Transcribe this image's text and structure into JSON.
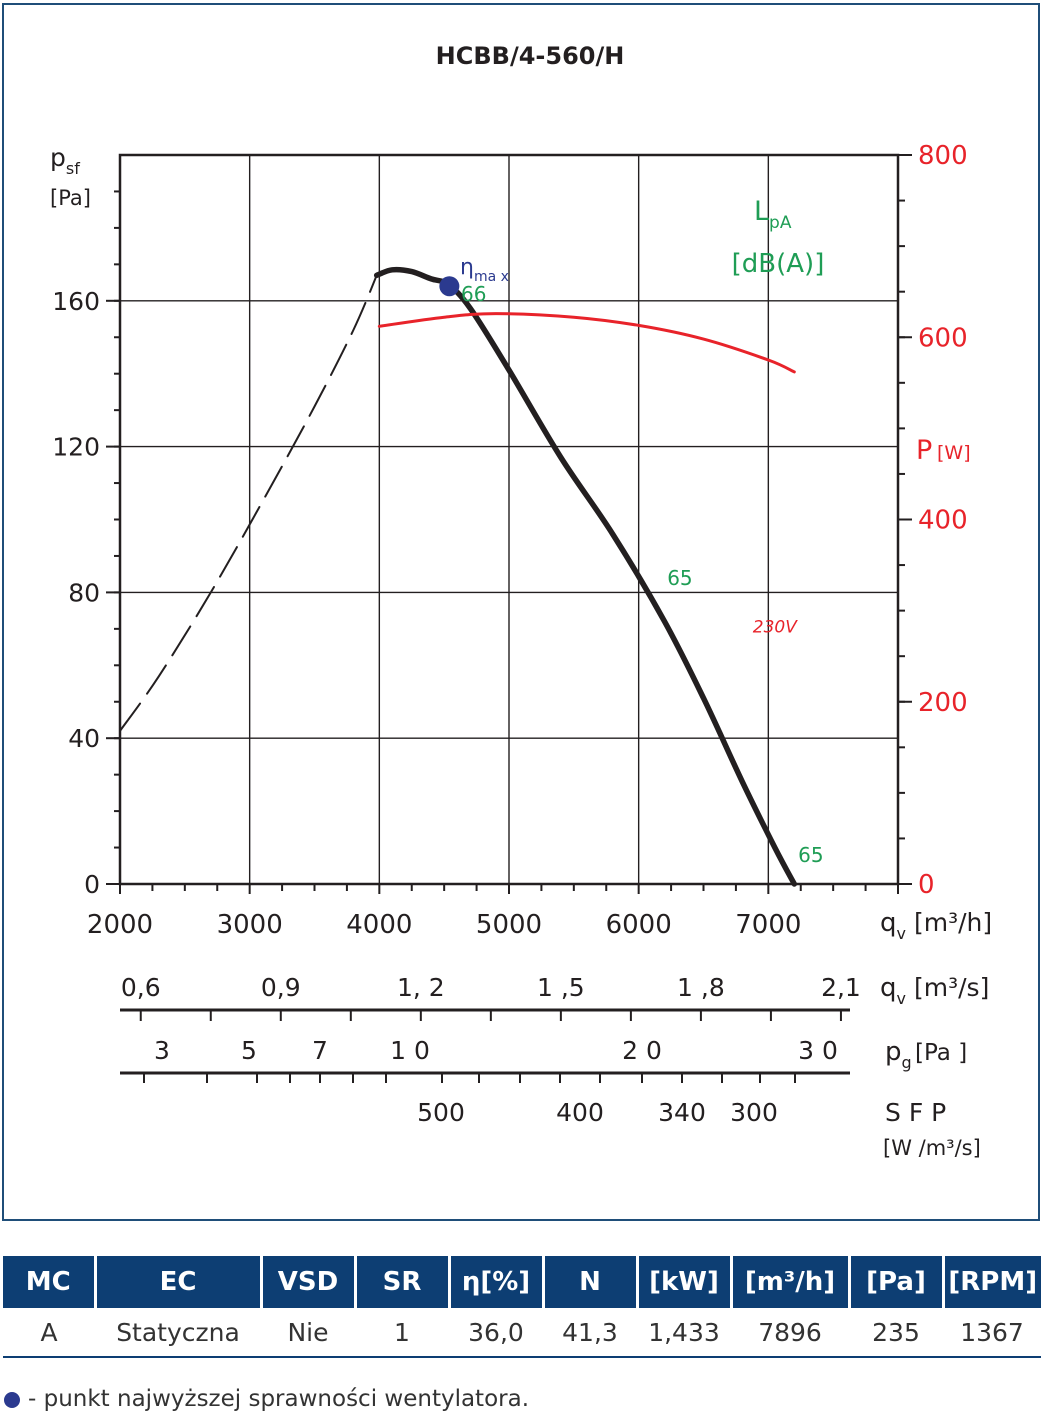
{
  "chart_data": {
    "type": "line",
    "title": "HCBB/4-560/H",
    "y_axis": {
      "label_main": "p",
      "label_sub": "sf",
      "unit": "[Pa]",
      "min": 0,
      "max": 200,
      "ticks": [
        0,
        40,
        80,
        120,
        160
      ],
      "tick_labels": [
        "0",
        "40",
        "80",
        "120",
        "160"
      ]
    },
    "y2_axis": {
      "label_main": "P",
      "unit": "[W]",
      "min": 0,
      "max": 800,
      "ticks": [
        0,
        200,
        400,
        600,
        800
      ],
      "tick_labels": [
        "0",
        "200",
        "400",
        "600",
        "800"
      ],
      "color": "#e8232a"
    },
    "x_axis": {
      "unit_label": "[m³/h]",
      "unit_main": "q",
      "unit_sub": "v",
      "min": 2000,
      "max": 8000,
      "ticks": [
        2000,
        3000,
        4000,
        5000,
        6000,
        7000
      ],
      "tick_labels": [
        "2000",
        "3000",
        "4000",
        "5000",
        "6000",
        "7000"
      ]
    },
    "x2_axis": {
      "unit_main": "q",
      "unit_sub": "v",
      "unit_label": "[m³/s]",
      "ticks": [
        0.6,
        0.9,
        1.2,
        1.5,
        1.8,
        2.1
      ],
      "tick_labels": [
        "0,6",
        "0,9",
        "1, 2",
        "1 ,5",
        "1 ,8",
        "2,1"
      ]
    },
    "x3_axis": {
      "unit_main": "p",
      "unit_sub": "g",
      "unit_label": "[Pa ]",
      "ticks": [
        3,
        5,
        7,
        10,
        20,
        30
      ],
      "tick_labels": [
        "3",
        "5",
        "7",
        "1 0",
        "2 0",
        "3 0"
      ]
    },
    "x4_axis": {
      "unit_main": "S F P",
      "unit_label": "[W /m³/s]",
      "ticks": [
        500,
        400,
        340,
        300
      ],
      "tick_labels": [
        "500",
        "400",
        "340",
        "300"
      ]
    },
    "sound_label_main": "L",
    "sound_label_sub": "pA",
    "sound_label_unit": "[dB(A)]",
    "eta_label_main": "η",
    "eta_label_sub": "ma x",
    "series": [
      {
        "name": "p_sf",
        "style": "solid",
        "color": "#231f20",
        "x": [
          3980,
          4100,
          4250,
          4400,
          4530,
          4700,
          5000,
          5400,
          5800,
          6200,
          6500,
          6800,
          7050,
          7200
        ],
        "y": [
          167,
          168.5,
          168,
          166,
          164.5,
          158,
          141,
          117,
          96,
          72,
          51,
          28,
          10,
          0
        ]
      },
      {
        "name": "p_sf_unstable",
        "style": "dashed",
        "color": "#231f20",
        "x": [
          2000,
          2300,
          2700,
          3100,
          3500,
          3800,
          3980
        ],
        "y": [
          42,
          57,
          80,
          105,
          131,
          152,
          167
        ]
      },
      {
        "name": "230V",
        "axis": "y2",
        "color": "#e8232a",
        "x": [
          4000,
          4500,
          4900,
          5500,
          6000,
          6500,
          7000,
          7200
        ],
        "y": [
          612,
          622,
          626,
          622,
          613,
          598,
          575,
          562
        ]
      }
    ],
    "eta_max_point": {
      "x": 4540,
      "y": 164
    },
    "annotations": [
      {
        "text": "66",
        "x": 4630,
        "y": 160,
        "color": "#1f9d55"
      },
      {
        "text": "65",
        "x": 6220,
        "y": 82,
        "color": "#1f9d55"
      },
      {
        "text": "65",
        "x": 7230,
        "y": 6,
        "color": "#1f9d55"
      },
      {
        "text": "230V",
        "x": 6880,
        "y": 69,
        "color": "#e8232a"
      }
    ],
    "grid": true
  },
  "table": {
    "headers": [
      "MC",
      "EC",
      "VSD",
      "SR",
      "η[%]",
      "N",
      "[kW]",
      "[m³/h]",
      "[Pa]",
      "[RPM]"
    ],
    "rows": [
      [
        "A",
        "Statyczna",
        "Nie",
        "1",
        "36,0",
        "41,3",
        "1,433",
        "7896",
        "235",
        "1367"
      ]
    ]
  },
  "footnote": "- punkt najwyższej sprawności wentylatora."
}
